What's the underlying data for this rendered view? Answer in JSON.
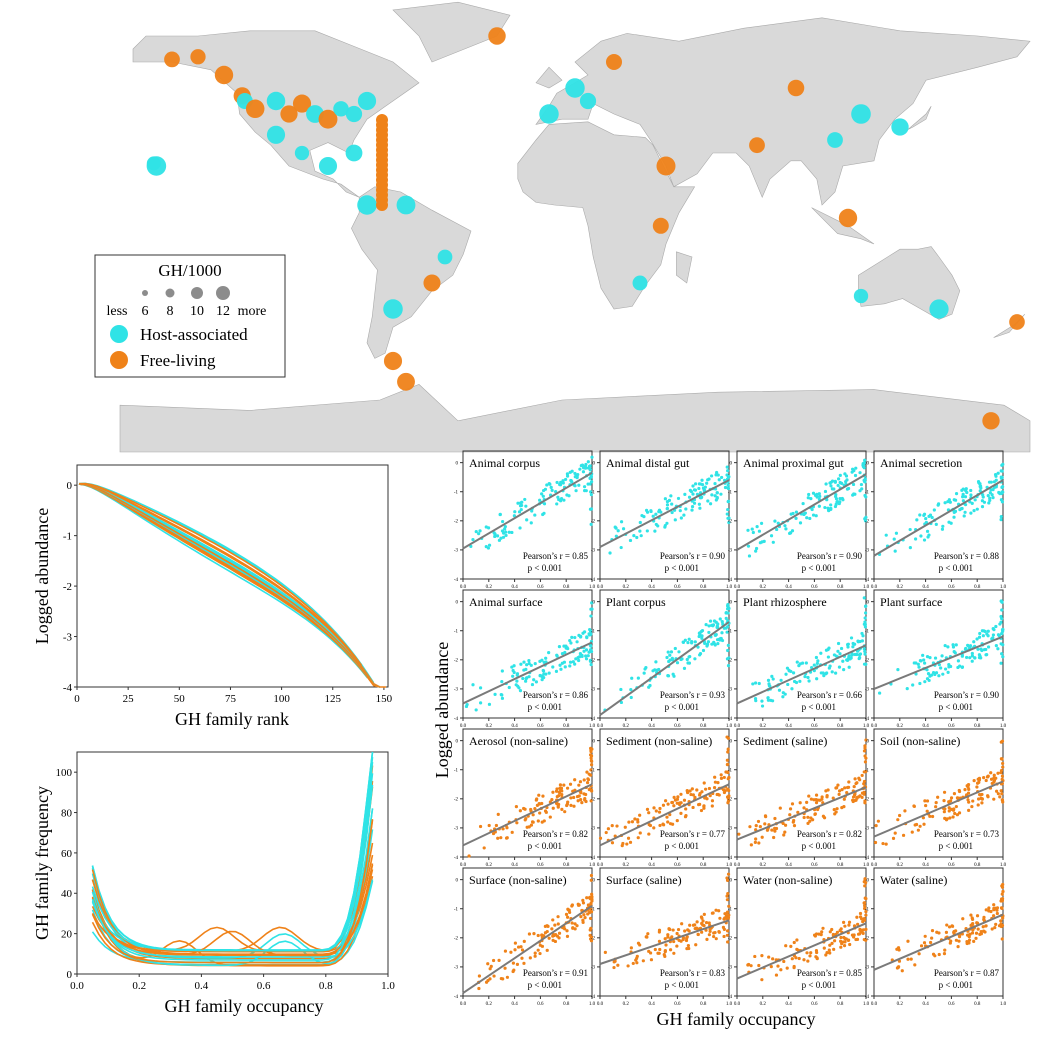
{
  "colors": {
    "host": "#2fe3e6",
    "free": "#ef8219",
    "land": "#d9d9d9",
    "fit": "#7a7a7a"
  },
  "map": {
    "legend": {
      "title": "GH/1000",
      "sizes": [
        "less",
        "6",
        "8",
        "10",
        "12",
        "more"
      ],
      "host_label": "Host-associated",
      "free_label": "Free-living"
    }
  },
  "chart_data": [
    {
      "type": "scatter",
      "title": "",
      "description_visible": "world map bubble chart",
      "legend": [
        "Host-associated",
        "Free-living"
      ],
      "points": [
        {
          "lon": -157,
          "lat": 21,
          "g": "host"
        },
        {
          "lon": -156,
          "lat": 20,
          "g": "host"
        },
        {
          "lon": -150,
          "lat": 61,
          "g": "free"
        },
        {
          "lon": -140,
          "lat": 62,
          "g": "free"
        },
        {
          "lon": -130,
          "lat": 55,
          "g": "free"
        },
        {
          "lon": -123,
          "lat": 47,
          "g": "free"
        },
        {
          "lon": -122,
          "lat": 45,
          "g": "host"
        },
        {
          "lon": -118,
          "lat": 42,
          "g": "free"
        },
        {
          "lon": -110,
          "lat": 45,
          "g": "host"
        },
        {
          "lon": -105,
          "lat": 40,
          "g": "free"
        },
        {
          "lon": -100,
          "lat": 44,
          "g": "free"
        },
        {
          "lon": -95,
          "lat": 40,
          "g": "host"
        },
        {
          "lon": -90,
          "lat": 38,
          "g": "free"
        },
        {
          "lon": -85,
          "lat": 42,
          "g": "host"
        },
        {
          "lon": -80,
          "lat": 40,
          "g": "host"
        },
        {
          "lon": -75,
          "lat": 45,
          "g": "host"
        },
        {
          "lon": -110,
          "lat": 32,
          "g": "host"
        },
        {
          "lon": -100,
          "lat": 25,
          "g": "host"
        },
        {
          "lon": -90,
          "lat": 20,
          "g": "host"
        },
        {
          "lon": -80,
          "lat": 25,
          "g": "host"
        },
        {
          "lon": -75,
          "lat": 5,
          "g": "host"
        },
        {
          "lon": -60,
          "lat": 5,
          "g": "host"
        },
        {
          "lon": -45,
          "lat": -15,
          "g": "host"
        },
        {
          "lon": -50,
          "lat": -25,
          "g": "free"
        },
        {
          "lon": -65,
          "lat": -35,
          "g": "host"
        },
        {
          "lon": -65,
          "lat": -55,
          "g": "free"
        },
        {
          "lon": -60,
          "lat": -63,
          "g": "free"
        },
        {
          "lon": -25,
          "lat": 70,
          "g": "free"
        },
        {
          "lon": -5,
          "lat": 40,
          "g": "host"
        },
        {
          "lon": 5,
          "lat": 50,
          "g": "host"
        },
        {
          "lon": 10,
          "lat": 45,
          "g": "host"
        },
        {
          "lon": 20,
          "lat": 60,
          "g": "free"
        },
        {
          "lon": 40,
          "lat": 20,
          "g": "free"
        },
        {
          "lon": 38,
          "lat": -3,
          "g": "free"
        },
        {
          "lon": 30,
          "lat": -25,
          "g": "host"
        },
        {
          "lon": 75,
          "lat": 28,
          "g": "free"
        },
        {
          "lon": 90,
          "lat": 50,
          "g": "free"
        },
        {
          "lon": 105,
          "lat": 30,
          "g": "host"
        },
        {
          "lon": 115,
          "lat": 40,
          "g": "host"
        },
        {
          "lon": 130,
          "lat": 35,
          "g": "host"
        },
        {
          "lon": 110,
          "lat": 0,
          "g": "free"
        },
        {
          "lon": 145,
          "lat": -35,
          "g": "host"
        },
        {
          "lon": 115,
          "lat": -30,
          "g": "host"
        },
        {
          "lon": 175,
          "lat": -40,
          "g": "free"
        },
        {
          "lon": 165,
          "lat": -78,
          "g": "free"
        }
      ]
    },
    {
      "type": "line",
      "title": "",
      "xlabel": "GH family rank",
      "ylabel": "Logged abundance",
      "xlim": [
        0,
        152
      ],
      "ylim": [
        -4,
        0.4
      ],
      "xticks": [
        0,
        25,
        50,
        75,
        100,
        125,
        150
      ],
      "yticks": [
        0,
        -1,
        -2,
        -3,
        -4
      ],
      "series_groups": [
        "host",
        "free"
      ],
      "n_series_each": 10
    },
    {
      "type": "line",
      "title": "",
      "xlabel": "GH family occupancy",
      "ylabel": "GH family frequency",
      "xlim": [
        0,
        1
      ],
      "ylim": [
        0,
        110
      ],
      "xticks": [
        "0.0",
        "0.2",
        "0.4",
        "0.6",
        "0.8",
        "1.0"
      ],
      "yticks": [
        "0",
        "20",
        "40",
        "60",
        "80",
        "100"
      ],
      "series_groups": [
        "host",
        "free"
      ]
    },
    {
      "type": "scatter",
      "title": "",
      "xlabel": "GH family occupancy",
      "ylabel": "Logged abundance",
      "panel_xticks": [
        "0.0",
        "0.2",
        "0.4",
        "0.6",
        "0.8",
        "1.0"
      ],
      "panel_yticks": [
        "0",
        "-1",
        "-2",
        "-3",
        "-4"
      ],
      "panels": [
        {
          "label": "Animal corpus",
          "r": "0.85",
          "p": "< 0.001",
          "g": "host",
          "slope": 2.6,
          "icpt": -2.95
        },
        {
          "label": "Animal distal gut",
          "r": "0.90",
          "p": "< 0.001",
          "g": "host",
          "slope": 2.3,
          "icpt": -2.9
        },
        {
          "label": "Animal proximal gut",
          "r": "0.90",
          "p": "< 0.001",
          "g": "host",
          "slope": 2.6,
          "icpt": -3.0
        },
        {
          "label": "Animal secretion",
          "r": "0.88",
          "p": "< 0.001",
          "g": "host",
          "slope": 2.6,
          "icpt": -3.2
        },
        {
          "label": "Animal surface",
          "r": "0.86",
          "p": "< 0.001",
          "g": "host",
          "slope": 2.1,
          "icpt": -3.5
        },
        {
          "label": "Plant corpus",
          "r": "0.93",
          "p": "< 0.001",
          "g": "host",
          "slope": 3.2,
          "icpt": -3.9
        },
        {
          "label": "Plant rhizosphere",
          "r": "0.66",
          "p": "< 0.001",
          "g": "host",
          "slope": 2.0,
          "icpt": -3.5
        },
        {
          "label": "Plant surface",
          "r": "0.90",
          "p": "< 0.001",
          "g": "host",
          "slope": 1.8,
          "icpt": -3.0
        },
        {
          "label": "Aerosol (non-saline)",
          "r": "0.82",
          "p": "< 0.001",
          "g": "free",
          "slope": 2.1,
          "icpt": -3.6
        },
        {
          "label": "Sediment (non-saline)",
          "r": "0.77",
          "p": "< 0.001",
          "g": "free",
          "slope": 2.1,
          "icpt": -3.6
        },
        {
          "label": "Sediment (saline)",
          "r": "0.82",
          "p": "< 0.001",
          "g": "free",
          "slope": 1.8,
          "icpt": -3.4
        },
        {
          "label": "Soil (non-saline)",
          "r": "0.73",
          "p": "< 0.001",
          "g": "free",
          "slope": 1.9,
          "icpt": -3.3
        },
        {
          "label": "Surface (non-saline)",
          "r": "0.91",
          "p": "< 0.001",
          "g": "free",
          "slope": 3.0,
          "icpt": -3.9
        },
        {
          "label": "Surface (saline)",
          "r": "0.83",
          "p": "< 0.001",
          "g": "free",
          "slope": 1.5,
          "icpt": -2.9
        },
        {
          "label": "Water (non-saline)",
          "r": "0.85",
          "p": "< 0.001",
          "g": "free",
          "slope": 1.9,
          "icpt": -3.4
        },
        {
          "label": "Water (saline)",
          "r": "0.87",
          "p": "< 0.001",
          "g": "free",
          "slope": 1.9,
          "icpt": -3.1
        }
      ],
      "pearson_label": "Pearson’s r = ",
      "p_label": "p"
    }
  ]
}
